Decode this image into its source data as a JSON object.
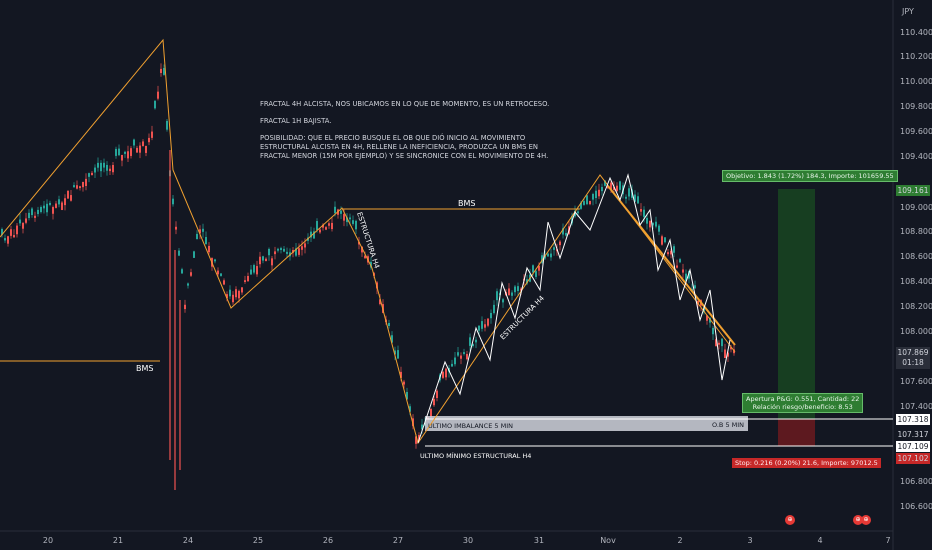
{
  "currency": "JPY",
  "note": "FRACTAL 4H ALCISTA, NOS UBICAMOS EN LO QUE DE MOMENTO, ES UN RETROCESO.\n\nFRACTAL 1H BAJISTA.\n\nPOSIBILIDAD: QUE EL PRECIO BUSQUE EL OB QUE DIÓ INICIO AL MOVIMIENTO ESTRUCTURAL ALCISTA EN 4H, RELLENE LA INEFICIENCIA, PRODUZCA UN BMS EN FRACTAL MENOR (15M POR EJEMPLO) Y SE SINCRONICE CON EL MOVIMIENTO DE 4H.",
  "labels": {
    "bms_top": "BMS",
    "bms_left": "BMS",
    "estructura_h4_a": "ESTRUCTURA H4",
    "estructura_h4_b": "ESTRUCTURA H4",
    "imbalance": "ULTIMO IMBALANCE 5 MIN",
    "ob": "O.B 5 MIN",
    "min_estructural": "ULTIMO MÍNIMO ESTRUCTURAL H4"
  },
  "position": {
    "target": "Objetivo: 1.843 (1.72%) 184.3, Importe: 101659.55",
    "open": "Apertura P&G: 0.551, Cantidad: 22",
    "ratio": "Relación riesgo/beneficio: 8.53",
    "stop": "Stop: 0.216 (0.20%) 21.6, Importe: 97012.5"
  },
  "price_axis": [
    "110.400",
    "110.200",
    "110.000",
    "109.800",
    "109.600",
    "109.400",
    "109.000",
    "108.800",
    "108.600",
    "108.400",
    "108.200",
    "108.000",
    "107.600",
    "107.400",
    "106.800",
    "106.600"
  ],
  "price_tags": {
    "target": "109.161",
    "current": "107.869",
    "countdown": "01:18",
    "ob_top": "107.318",
    "ob_bottom": "107.317",
    "low": "107.109",
    "stop": "107.102"
  },
  "time_axis": [
    "20",
    "21",
    "24",
    "25",
    "26",
    "27",
    "30",
    "31",
    "Nov",
    "2",
    "3",
    "4",
    "7"
  ],
  "events": [
    "event-1",
    "event-2"
  ],
  "colors": {
    "bg": "#131722",
    "up": "#26a69a",
    "down": "#ef5350",
    "structure": "#f0a030",
    "target": "#2e7d32",
    "stop": "#c62828"
  }
}
